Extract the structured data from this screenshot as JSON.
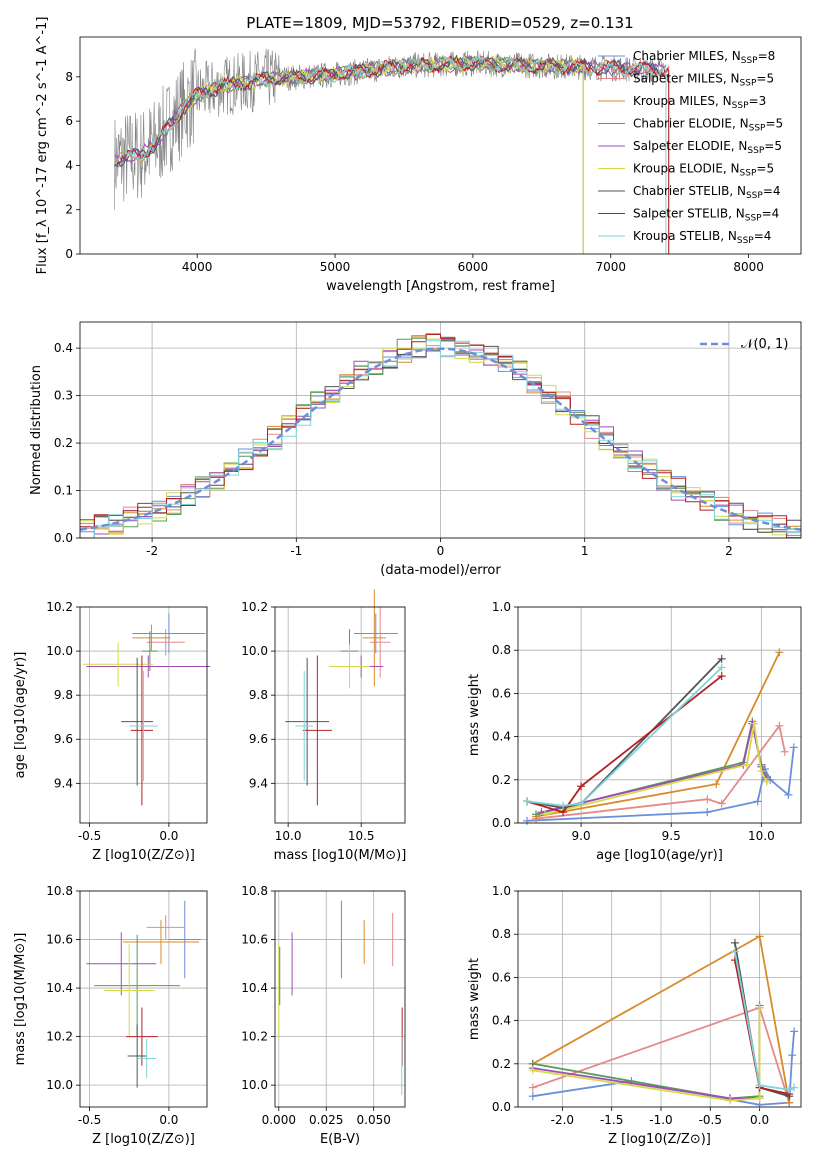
{
  "figure": {
    "title": "PLATE=1809, MJD=53792, FIBERID=0529, z=0.131"
  },
  "colors": {
    "Chabrier MILES": "#6b8fd8",
    "Salpeter MILES": "#e58a8a",
    "Kroupa MILES": "#d98a2b",
    "Chabrier ELODIE": "#5a9a5a",
    "Salpeter ELODIE": "#a24cb8",
    "Kroupa ELODIE": "#d6d94a",
    "Chabrier STELIB": "#555555",
    "Salpeter STELIB": "#b22222",
    "Kroupa STELIB": "#7fd3db",
    "data": "#808080",
    "pinkline": "#e37fb8",
    "greenline": "#9ccc65"
  },
  "chart_data": [
    {
      "type": "line",
      "id": "spectrum",
      "xlabel": "wavelength [Angstrom, rest frame]",
      "ylabel": "Flux [f_λ 10^-17 erg cm^-2 s^-1 A^-1]",
      "xlim": [
        3150,
        8380
      ],
      "ylim": [
        0,
        9.8
      ],
      "xticks": [
        4000,
        5000,
        6000,
        7000,
        8000
      ],
      "yticks": [
        0,
        2,
        4,
        6,
        8
      ],
      "legend_position": "right",
      "legend": [
        {
          "name": "Chabrier MILES",
          "nssp": "8"
        },
        {
          "name": "Salpeter MILES",
          "nssp": "5"
        },
        {
          "name": "Kroupa MILES",
          "nssp": "3"
        },
        {
          "name": "Chabrier ELODIE",
          "nssp": "5"
        },
        {
          "name": "Salpeter ELODIE",
          "nssp": "5"
        },
        {
          "name": "Kroupa ELODIE",
          "nssp": "5"
        },
        {
          "name": "Chabrier STELIB",
          "nssp": "4"
        },
        {
          "name": "Salpeter STELIB",
          "nssp": "4"
        },
        {
          "name": "Kroupa STELIB",
          "nssp": "4"
        }
      ],
      "continuum": [
        [
          3400,
          4.2
        ],
        [
          3500,
          4.4
        ],
        [
          3600,
          4.5
        ],
        [
          3700,
          5.0
        ],
        [
          3800,
          5.8
        ],
        [
          3900,
          6.6
        ],
        [
          4000,
          7.2
        ],
        [
          4200,
          7.6
        ],
        [
          4500,
          7.9
        ],
        [
          5000,
          8.1
        ],
        [
          5500,
          8.5
        ],
        [
          6000,
          8.6
        ],
        [
          6500,
          8.5
        ],
        [
          7000,
          8.4
        ],
        [
          7400,
          8.3
        ]
      ]
    },
    {
      "type": "line",
      "id": "residuals",
      "xlabel": "(data-model)/error",
      "ylabel": "Normed distribution",
      "xlim": [
        -2.5,
        2.5
      ],
      "ylim": [
        0,
        0.455
      ],
      "xticks": [
        -2,
        -1,
        0,
        1,
        2
      ],
      "yticks": [
        0.0,
        0.1,
        0.2,
        0.3,
        0.4
      ],
      "legend": "N(0,1)",
      "legend_position": "top-right",
      "gaussian": {
        "mean": 0,
        "sigma": 1
      }
    },
    {
      "type": "scatter",
      "id": "age_vs_Z",
      "xlabel": "Z [log10(Z/Z⊙)]",
      "ylabel": "age [log10(age/yr)]",
      "xlim": [
        -0.56,
        0.24
      ],
      "ylim": [
        9.22,
        10.2
      ],
      "xticks": [
        -0.5,
        0.0
      ],
      "yticks": [
        9.4,
        9.6,
        9.8,
        10.0,
        10.2
      ],
      "points": [
        {
          "model": "Chabrier MILES",
          "x": 0.0,
          "y": 10.08,
          "xerr": 0.23,
          "yerr": 0.09
        },
        {
          "model": "Salpeter MILES",
          "x": -0.02,
          "y": 10.04,
          "xerr": 0.12,
          "yerr": 0.06
        },
        {
          "model": "Kroupa MILES",
          "x": -0.11,
          "y": 10.06,
          "xerr": 0.12,
          "yerr": 0.06
        },
        {
          "model": "Chabrier ELODIE",
          "x": -0.12,
          "y": 10.0,
          "xerr": 0.05,
          "yerr": 0.09
        },
        {
          "model": "Salpeter ELODIE",
          "x": -0.13,
          "y": 9.93,
          "xerr": 0.39,
          "yerr": 0.05
        },
        {
          "model": "Kroupa ELODIE",
          "x": -0.32,
          "y": 9.94,
          "xerr": 0.22,
          "yerr": 0.1
        },
        {
          "model": "Chabrier STELIB",
          "x": -0.2,
          "y": 9.68,
          "xerr": 0.1,
          "yerr": 0.29
        },
        {
          "model": "Salpeter STELIB",
          "x": -0.17,
          "y": 9.64,
          "xerr": 0.07,
          "yerr": 0.34
        },
        {
          "model": "Kroupa STELIB",
          "x": -0.16,
          "y": 9.66,
          "xerr": 0.09,
          "yerr": 0.25
        }
      ]
    },
    {
      "type": "scatter",
      "id": "age_vs_mass",
      "xlabel": "mass [log10(M/M⊙)]",
      "ylabel": "",
      "xlim": [
        9.91,
        10.8
      ],
      "ylim": [
        9.22,
        10.2
      ],
      "xticks": [
        10.0,
        10.5
      ],
      "yticks": [
        9.4,
        9.6,
        9.8,
        10.0,
        10.2
      ],
      "points": [
        {
          "model": "Chabrier MILES",
          "x": 10.6,
          "y": 10.08,
          "xerr": 0.15,
          "yerr": 0.09
        },
        {
          "model": "Salpeter MILES",
          "x": 10.63,
          "y": 10.04,
          "xerr": 0.07,
          "yerr": 0.16
        },
        {
          "model": "Kroupa MILES",
          "x": 10.59,
          "y": 10.06,
          "xerr": 0.08,
          "yerr": 0.22
        },
        {
          "model": "Chabrier ELODIE",
          "x": 10.42,
          "y": 10.0,
          "xerr": 0.06,
          "yerr": 0.1
        },
        {
          "model": "Salpeter ELODIE",
          "x": 10.5,
          "y": 9.93,
          "xerr": 0.15,
          "yerr": 0.05
        },
        {
          "model": "Kroupa ELODIE",
          "x": 10.42,
          "y": 9.93,
          "xerr": 0.14,
          "yerr": 0.1
        },
        {
          "model": "Chabrier STELIB",
          "x": 10.13,
          "y": 9.68,
          "xerr": 0.15,
          "yerr": 0.29
        },
        {
          "model": "Salpeter STELIB",
          "x": 10.2,
          "y": 9.64,
          "xerr": 0.1,
          "yerr": 0.34
        },
        {
          "model": "Kroupa STELIB",
          "x": 10.11,
          "y": 9.66,
          "xerr": 0.06,
          "yerr": 0.25
        }
      ]
    },
    {
      "type": "line",
      "id": "mass_weight_vs_age",
      "xlabel": "age [log10(age/yr)]",
      "ylabel": "mass weight",
      "xlim": [
        8.65,
        10.22
      ],
      "ylim": [
        0,
        1.0
      ],
      "xticks": [
        9.0,
        9.5,
        10.0
      ],
      "yticks": [
        0.0,
        0.2,
        0.4,
        0.6,
        0.8,
        1.0
      ],
      "series": [
        {
          "model": "Chabrier MILES",
          "x": [
            8.7,
            9.7,
            9.98,
            10.02,
            10.05,
            10.15,
            10.18
          ],
          "y": [
            0.01,
            0.05,
            0.1,
            0.25,
            0.2,
            0.13,
            0.35
          ]
        },
        {
          "model": "Salpeter MILES",
          "x": [
            8.75,
            9.7,
            9.78,
            10.1,
            10.13
          ],
          "y": [
            0.02,
            0.11,
            0.09,
            0.45,
            0.33
          ]
        },
        {
          "model": "Kroupa MILES",
          "x": [
            8.75,
            9.75,
            10.1
          ],
          "y": [
            0.03,
            0.18,
            0.79
          ]
        },
        {
          "model": "Chabrier ELODIE",
          "x": [
            8.75,
            9.9,
            9.95,
            10.0,
            10.03
          ],
          "y": [
            0.04,
            0.28,
            0.47,
            0.27,
            0.21
          ]
        },
        {
          "model": "Salpeter ELODIE",
          "x": [
            8.78,
            9.9,
            9.95,
            10.0,
            10.03
          ],
          "y": [
            0.05,
            0.27,
            0.46,
            0.26,
            0.2
          ]
        },
        {
          "model": "Kroupa ELODIE",
          "x": [
            8.8,
            9.92,
            9.96,
            10.0,
            10.03
          ],
          "y": [
            0.04,
            0.27,
            0.46,
            0.24,
            0.19
          ]
        },
        {
          "model": "Chabrier STELIB",
          "x": [
            8.7,
            8.9,
            9.0,
            9.78
          ],
          "y": [
            0.1,
            0.07,
            0.09,
            0.76
          ]
        },
        {
          "model": "Salpeter STELIB",
          "x": [
            8.7,
            8.9,
            9.0,
            9.78
          ],
          "y": [
            0.1,
            0.05,
            0.17,
            0.68
          ]
        },
        {
          "model": "Kroupa STELIB",
          "x": [
            8.7,
            8.9,
            9.0,
            9.78
          ],
          "y": [
            0.1,
            0.08,
            0.09,
            0.72
          ]
        }
      ]
    },
    {
      "type": "scatter",
      "id": "mass_vs_Z",
      "xlabel": "Z [log10(Z/Z⊙)]",
      "ylabel": "mass [log10(M/M⊙)]",
      "xlim": [
        -0.56,
        0.24
      ],
      "ylim": [
        9.91,
        10.8
      ],
      "xticks": [
        -0.5,
        0.0
      ],
      "yticks": [
        10.0,
        10.2,
        10.4,
        10.6,
        10.8
      ],
      "points": [
        {
          "model": "Chabrier MILES",
          "x": 0.1,
          "y": 10.6,
          "xerr": 0.1,
          "yerr": 0.16
        },
        {
          "model": "Salpeter MILES",
          "x": -0.02,
          "y": 10.65,
          "xerr": 0.12,
          "yerr": 0.05
        },
        {
          "model": "Kroupa MILES",
          "x": -0.05,
          "y": 10.59,
          "xerr": 0.24,
          "yerr": 0.09
        },
        {
          "model": "Chabrier ELODIE",
          "x": -0.2,
          "y": 10.41,
          "xerr": 0.27,
          "yerr": 0.21
        },
        {
          "model": "Salpeter ELODIE",
          "x": -0.3,
          "y": 10.5,
          "xerr": 0.22,
          "yerr": 0.13
        },
        {
          "model": "Kroupa ELODIE",
          "x": -0.25,
          "y": 10.39,
          "xerr": 0.16,
          "yerr": 0.19
        },
        {
          "model": "Chabrier STELIB",
          "x": -0.2,
          "y": 10.12,
          "xerr": 0.06,
          "yerr": 0.13
        },
        {
          "model": "Salpeter STELIB",
          "x": -0.17,
          "y": 10.2,
          "xerr": 0.1,
          "yerr": 0.12
        },
        {
          "model": "Kroupa STELIB",
          "x": -0.14,
          "y": 10.11,
          "xerr": 0.06,
          "yerr": 0.08
        }
      ]
    },
    {
      "type": "scatter",
      "id": "mass_vs_EBV",
      "xlabel": "E(B-V)",
      "ylabel": "",
      "xlim": [
        -0.002,
        0.0665
      ],
      "ylim": [
        9.91,
        10.8
      ],
      "xticks": [
        0.0,
        0.025,
        0.05
      ],
      "xticklabels": [
        "0.000",
        "0.025",
        "0.050"
      ],
      "yticks": [
        10.0,
        10.2,
        10.4,
        10.6,
        10.8
      ],
      "points": [
        {
          "model": "Kroupa ELODIE",
          "x": 0.0,
          "y": 10.39,
          "xerr": 0,
          "yerr": 0.19
        },
        {
          "model": "Chabrier ELODIE",
          "x": 0.0005,
          "y": 10.45,
          "xerr": 0,
          "yerr": 0.12
        },
        {
          "model": "Salpeter ELODIE",
          "x": 0.007,
          "y": 10.5,
          "xerr": 0,
          "yerr": 0.13
        },
        {
          "model": "Chabrier MILES",
          "x": 0.033,
          "y": 10.6,
          "xerr": 0,
          "yerr": 0.16
        },
        {
          "model": "Kroupa MILES",
          "x": 0.045,
          "y": 10.59,
          "xerr": 0,
          "yerr": 0.09
        },
        {
          "model": "Salpeter MILES",
          "x": 0.06,
          "y": 10.6,
          "xerr": 0,
          "yerr": 0.11
        },
        {
          "model": "Salpeter STELIB",
          "x": 0.065,
          "y": 10.2,
          "xerr": 0,
          "yerr": 0.12
        },
        {
          "model": "Kroupa STELIB",
          "x": 0.0648,
          "y": 10.08,
          "xerr": 0,
          "yerr": 0.12
        }
      ]
    },
    {
      "type": "line",
      "id": "mass_weight_vs_Z",
      "xlabel": "Z [log10(Z/Z⊙)]",
      "ylabel": "mass weight",
      "xlim": [
        -2.45,
        0.42
      ],
      "ylim": [
        0,
        1.0
      ],
      "xticks": [
        -2.0,
        -1.5,
        -1.0,
        -0.5,
        0.0
      ],
      "yticks": [
        0.0,
        0.2,
        0.4,
        0.6,
        0.8,
        1.0
      ],
      "series": [
        {
          "model": "Chabrier MILES",
          "x": [
            -2.3,
            -1.3,
            0.0,
            0.3,
            0.33,
            0.35
          ],
          "y": [
            0.05,
            0.12,
            0.01,
            0.02,
            0.24,
            0.35
          ]
        },
        {
          "model": "Salpeter MILES",
          "x": [
            -2.3,
            0.0,
            0.3
          ],
          "y": [
            0.09,
            0.46,
            0.02
          ]
        },
        {
          "model": "Kroupa MILES",
          "x": [
            -2.3,
            0.0,
            0.3
          ],
          "y": [
            0.2,
            0.79,
            0.02
          ]
        },
        {
          "model": "Chabrier ELODIE",
          "x": [
            -2.3,
            -0.3,
            0.0,
            0.0
          ],
          "y": [
            0.2,
            0.04,
            0.05,
            0.47
          ]
        },
        {
          "model": "Salpeter ELODIE",
          "x": [
            -2.3,
            -0.3,
            0.0,
            0.0
          ],
          "y": [
            0.18,
            0.04,
            0.04,
            0.46
          ]
        },
        {
          "model": "Kroupa ELODIE",
          "x": [
            -2.3,
            -0.3,
            0.0,
            0.0
          ],
          "y": [
            0.17,
            0.03,
            0.04,
            0.46
          ]
        },
        {
          "model": "Chabrier STELIB",
          "x": [
            -0.25,
            0.0,
            0.3
          ],
          "y": [
            0.76,
            0.09,
            0.05
          ]
        },
        {
          "model": "Salpeter STELIB",
          "x": [
            -0.25,
            0.0,
            0.3
          ],
          "y": [
            0.68,
            0.09,
            0.06
          ]
        },
        {
          "model": "Kroupa STELIB",
          "x": [
            -0.25,
            0.0,
            0.3,
            0.35
          ],
          "y": [
            0.72,
            0.1,
            0.08,
            0.09
          ]
        }
      ]
    }
  ]
}
